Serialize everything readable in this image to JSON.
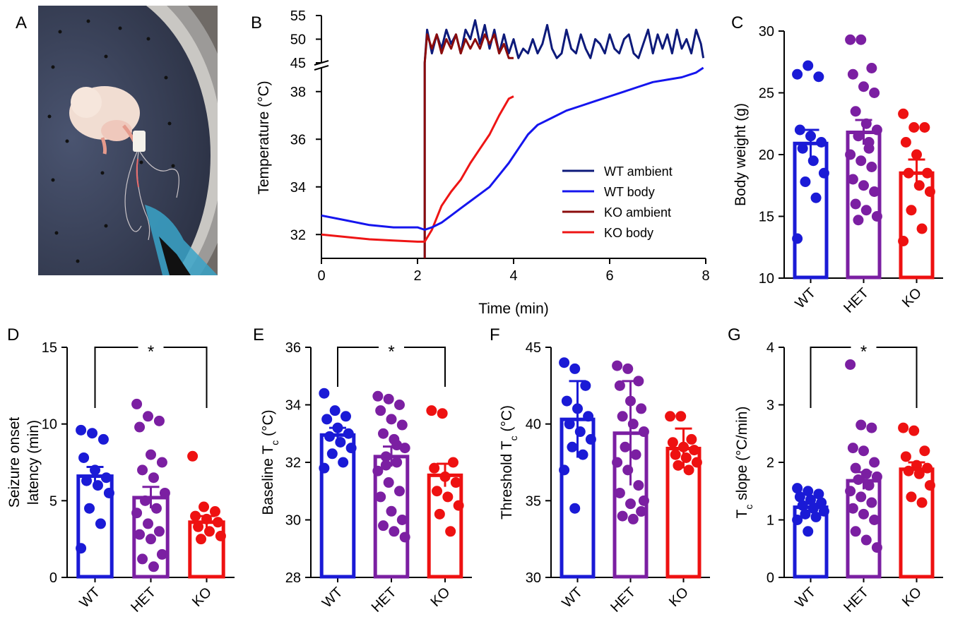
{
  "panel_letters": [
    "A",
    "B",
    "C",
    "D",
    "E",
    "F",
    "G"
  ],
  "photo": {
    "description_icon": "photo-mouse-in-chamber"
  },
  "chart_data": [
    {
      "panel": "B",
      "type": "line",
      "xlabel": "Time (min)",
      "ylabel": "Temperature (°C)",
      "xlim": [
        0,
        8
      ],
      "x_ticks": [
        0,
        2,
        4,
        6,
        8
      ],
      "ylim_lower": [
        31,
        39
      ],
      "y_ticks_lower": [
        32,
        34,
        36,
        38
      ],
      "ylim_upper": [
        45,
        55
      ],
      "y_ticks_upper": [
        45,
        50,
        55
      ],
      "axis_break": true,
      "legend_position": "lower-right",
      "series": [
        {
          "name": "WT ambient",
          "color": "#0d1a7a",
          "axis": "upper",
          "x": [
            2.15,
            2.2,
            2.3,
            2.4,
            2.5,
            2.6,
            2.7,
            2.8,
            2.9,
            3.0,
            3.1,
            3.2,
            3.3,
            3.4,
            3.5,
            3.6,
            3.7,
            3.8,
            3.9,
            4.0,
            4.1,
            4.2,
            4.3,
            4.4,
            4.5,
            4.6,
            4.7,
            4.8,
            4.9,
            5.0,
            5.1,
            5.2,
            5.3,
            5.4,
            5.5,
            5.6,
            5.7,
            5.8,
            5.9,
            6.0,
            6.1,
            6.2,
            6.3,
            6.4,
            6.5,
            6.6,
            6.7,
            6.8,
            6.9,
            7.0,
            7.1,
            7.2,
            7.3,
            7.4,
            7.5,
            7.6,
            7.7,
            7.8,
            7.9,
            7.95
          ],
          "y": [
            45,
            52,
            47,
            51,
            48,
            52,
            49,
            51,
            47,
            52,
            50,
            54,
            49,
            53,
            48,
            52,
            47,
            51,
            47,
            50,
            46,
            48,
            47,
            50,
            47,
            49,
            53,
            48,
            46,
            47,
            52,
            48,
            47,
            51,
            48,
            46,
            50,
            49,
            47,
            51,
            48,
            47,
            50,
            51,
            47,
            46,
            49,
            52,
            47,
            51,
            48,
            51,
            47,
            52,
            48,
            50,
            47,
            52,
            49,
            46
          ]
        },
        {
          "name": "WT body",
          "color": "#1515ee",
          "axis": "lower",
          "x": [
            0,
            0.5,
            1.0,
            1.5,
            2.0,
            2.15,
            2.3,
            2.5,
            2.7,
            2.9,
            3.1,
            3.3,
            3.5,
            3.7,
            3.9,
            4.1,
            4.3,
            4.5,
            4.8,
            5.1,
            5.4,
            5.7,
            6.0,
            6.3,
            6.6,
            6.9,
            7.2,
            7.5,
            7.8,
            7.95
          ],
          "y": [
            32.8,
            32.6,
            32.4,
            32.3,
            32.3,
            32.2,
            32.3,
            32.5,
            32.8,
            33.1,
            33.4,
            33.7,
            34.0,
            34.5,
            35.0,
            35.6,
            36.2,
            36.6,
            36.9,
            37.2,
            37.4,
            37.6,
            37.8,
            38.0,
            38.2,
            38.4,
            38.5,
            38.6,
            38.8,
            39.0
          ]
        },
        {
          "name": "KO ambient",
          "color": "#8b0c0c",
          "axis": "upper",
          "x": [
            2.15,
            2.2,
            2.3,
            2.4,
            2.5,
            2.6,
            2.7,
            2.8,
            2.9,
            3.0,
            3.1,
            3.2,
            3.3,
            3.4,
            3.5,
            3.6,
            3.7,
            3.8,
            3.9,
            4.0
          ],
          "y": [
            45,
            51,
            48,
            51,
            47,
            50,
            48,
            51,
            47,
            50,
            48,
            50,
            48,
            51,
            49,
            51,
            47,
            49,
            46,
            46
          ]
        },
        {
          "name": "KO body",
          "color": "#ee1515",
          "axis": "lower",
          "x": [
            0,
            0.5,
            1.0,
            1.5,
            2.0,
            2.15,
            2.3,
            2.5,
            2.7,
            2.9,
            3.1,
            3.3,
            3.5,
            3.7,
            3.9,
            4.0
          ],
          "y": [
            32.0,
            31.9,
            31.8,
            31.75,
            31.7,
            31.7,
            32.2,
            33.2,
            33.8,
            34.3,
            35.0,
            35.6,
            36.2,
            37.0,
            37.7,
            37.8
          ]
        }
      ]
    },
    {
      "panel": "C",
      "type": "bar",
      "ylabel": "Body weight (g)",
      "ylim": [
        10,
        30
      ],
      "y_ticks": [
        10,
        15,
        20,
        25,
        30
      ],
      "categories": [
        "WT",
        "HET",
        "KO"
      ],
      "colors": [
        "#1a1ad6",
        "#7b1fa2",
        "#ee1111"
      ],
      "means": [
        20.9,
        21.8,
        18.5
      ],
      "sem": [
        1.1,
        1.0,
        1.1
      ],
      "points": [
        [
          26.5,
          27.2,
          26.3,
          22.0,
          21.5,
          21.0,
          20.5,
          19.5,
          18.5,
          17.8,
          16.5,
          13.2
        ],
        [
          29.3,
          29.3,
          27.0,
          26.5,
          25.5,
          25.0,
          23.5,
          22.5,
          22.0,
          21.5,
          20.5,
          20.0,
          19.5,
          19.0,
          18.0,
          17.5,
          17.0,
          16.0,
          15.5,
          15.0,
          14.7,
          21.0
        ],
        [
          23.3,
          22.2,
          22.2,
          21.0,
          20.0,
          18.5,
          18.5,
          17.5,
          17.0,
          15.5,
          14.0,
          13.0
        ]
      ]
    },
    {
      "panel": "D",
      "type": "bar",
      "ylabel": "Seizure onset latency (min)",
      "ylim": [
        0,
        15
      ],
      "y_ticks": [
        0,
        5,
        10,
        15
      ],
      "categories": [
        "WT",
        "HET",
        "KO"
      ],
      "colors": [
        "#1a1ad6",
        "#7b1fa2",
        "#ee1111"
      ],
      "means": [
        6.6,
        5.2,
        3.6
      ],
      "sem": [
        0.6,
        0.7,
        0.4
      ],
      "significance": [
        {
          "between": [
            "WT",
            "KO"
          ],
          "label": "*"
        }
      ],
      "points": [
        [
          9.6,
          9.4,
          9.0,
          7.8,
          7.0,
          6.5,
          6.3,
          6.0,
          5.5,
          4.5,
          3.5,
          1.9
        ],
        [
          11.3,
          10.5,
          10.2,
          9.8,
          8.0,
          7.5,
          7.0,
          6.5,
          5.5,
          5.0,
          4.5,
          4.2,
          3.5,
          3.0,
          2.8,
          2.5,
          1.5,
          1.2,
          0.7
        ],
        [
          7.9,
          4.6,
          4.3,
          4.0,
          3.8,
          3.6,
          3.3,
          3.0,
          2.7,
          2.5
        ]
      ]
    },
    {
      "panel": "E",
      "type": "bar",
      "ylabel": "Baseline T",
      "ylabel_sub": "c",
      "ylabel_unit": " (°C)",
      "ylim": [
        28,
        36
      ],
      "y_ticks": [
        28,
        30,
        32,
        34,
        36
      ],
      "categories": [
        "WT",
        "HET",
        "KO"
      ],
      "colors": [
        "#1a1ad6",
        "#7b1fa2",
        "#ee1111"
      ],
      "means": [
        32.95,
        32.2,
        31.55
      ],
      "sem": [
        0.25,
        0.35,
        0.4
      ],
      "significance": [
        {
          "between": [
            "WT",
            "KO"
          ],
          "label": "*"
        }
      ],
      "points": [
        [
          34.4,
          33.8,
          33.6,
          33.5,
          33.2,
          33.0,
          32.9,
          32.7,
          32.5,
          32.3,
          32.0,
          31.8
        ],
        [
          34.3,
          34.2,
          34.0,
          33.8,
          33.5,
          33.3,
          33.0,
          32.8,
          32.5,
          32.2,
          32.0,
          31.7,
          31.3,
          31.0,
          30.8,
          30.3,
          30.0,
          29.8,
          29.6,
          29.4,
          31.9,
          32.6
        ],
        [
          33.8,
          33.7,
          32.0,
          31.8,
          31.5,
          31.3,
          31.0,
          30.8,
          30.5,
          30.2,
          29.6
        ]
      ]
    },
    {
      "panel": "F",
      "type": "bar",
      "ylabel": "Threshold T",
      "ylabel_sub": "c",
      "ylabel_unit": " (°C)",
      "ylim": [
        30,
        45
      ],
      "y_ticks": [
        30,
        35,
        40,
        45
      ],
      "categories": [
        "WT",
        "HET",
        "KO"
      ],
      "colors": [
        "#1a1ad6",
        "#7b1fa2",
        "#ee1111"
      ],
      "means": [
        40.3,
        39.4,
        38.4
      ],
      "sem": [
        2.5,
        3.4,
        1.3
      ],
      "points": [
        [
          44.0,
          43.6,
          42.5,
          41.5,
          41.0,
          40.5,
          40.0,
          39.5,
          39.0,
          38.5,
          38.0,
          37.0,
          34.5
        ],
        [
          43.8,
          43.6,
          42.8,
          42.5,
          41.5,
          41.0,
          40.5,
          40.0,
          39.5,
          38.5,
          38.0,
          37.5,
          37.0,
          36.0,
          35.5,
          34.8,
          34.3,
          34.0,
          33.8,
          35.0
        ],
        [
          40.5,
          40.5,
          39.0,
          38.8,
          38.5,
          38.3,
          38.0,
          37.8,
          37.5,
          37.3,
          37.0
        ]
      ]
    },
    {
      "panel": "G",
      "type": "bar",
      "ylabel": "T",
      "ylabel_sub": "c",
      "ylabel_unit": " slope (°C/min)",
      "ylim": [
        0,
        4
      ],
      "y_ticks": [
        0,
        1,
        2,
        3,
        4
      ],
      "categories": [
        "WT",
        "HET",
        "KO"
      ],
      "colors": [
        "#1a1ad6",
        "#7b1fa2",
        "#ee1111"
      ],
      "means": [
        1.22,
        1.68,
        1.88
      ],
      "sem": [
        0.06,
        0.15,
        0.12
      ],
      "significance": [
        {
          "between": [
            "WT",
            "KO"
          ],
          "label": "*"
        }
      ],
      "points": [
        [
          1.55,
          1.5,
          1.45,
          1.4,
          1.35,
          1.3,
          1.25,
          1.2,
          1.15,
          1.1,
          1.05,
          1.0,
          0.8
        ],
        [
          3.7,
          2.65,
          2.6,
          2.25,
          2.2,
          2.0,
          1.9,
          1.8,
          1.75,
          1.7,
          1.6,
          1.5,
          1.4,
          1.3,
          1.2,
          1.1,
          1.0,
          0.8,
          0.65,
          0.52
        ],
        [
          2.6,
          2.55,
          2.2,
          2.1,
          1.95,
          1.9,
          1.85,
          1.8,
          1.6,
          1.4,
          1.3
        ]
      ]
    }
  ]
}
